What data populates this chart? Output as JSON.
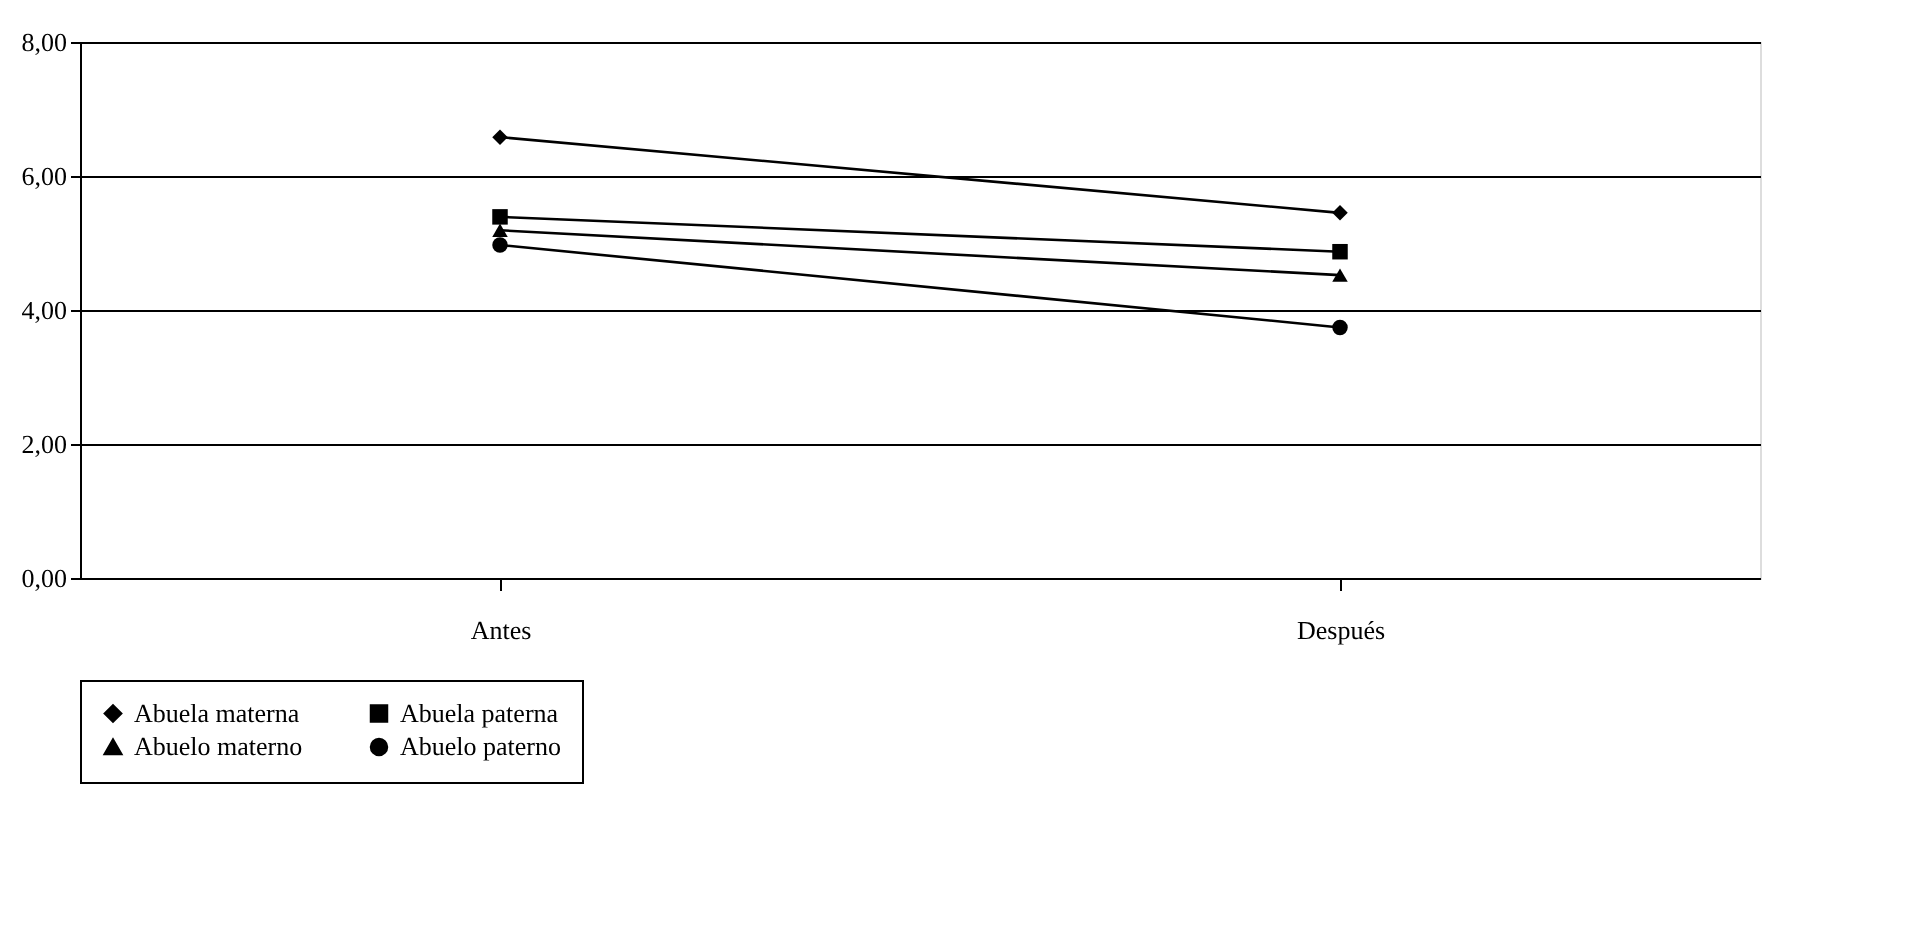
{
  "chart_data": {
    "type": "line",
    "categories": [
      "Antes",
      "Después"
    ],
    "series": [
      {
        "name": "Abuela materna",
        "color": "#000000",
        "marker": "diamond",
        "values": [
          6.58,
          5.45
        ]
      },
      {
        "name": "Abuela paterna",
        "color": "#000000",
        "marker": "square",
        "values": [
          5.39,
          4.87
        ]
      },
      {
        "name": "Abuelo materno",
        "color": "#000000",
        "marker": "triangle",
        "values": [
          5.19,
          4.52
        ]
      },
      {
        "name": "Abuelo paterno",
        "color": "#000000",
        "marker": "circle",
        "values": [
          4.97,
          3.74
        ]
      }
    ],
    "ylim": [
      0,
      8
    ],
    "yticks": [
      {
        "value": 0,
        "label": "0,00"
      },
      {
        "value": 2,
        "label": "2,00"
      },
      {
        "value": 4,
        "label": "4,00"
      },
      {
        "value": 6,
        "label": "6,00"
      },
      {
        "value": 8,
        "label": "8,00"
      }
    ],
    "grid": "y",
    "legend": "bottom",
    "line_style": "solid"
  }
}
